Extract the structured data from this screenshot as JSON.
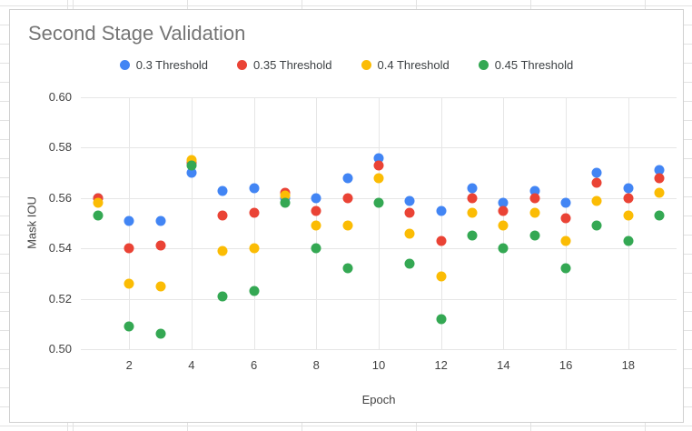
{
  "chart_data": {
    "type": "scatter",
    "title": "Second Stage Validation",
    "xlabel": "Epoch",
    "ylabel": "Mask IOU",
    "xlim": [
      0.45,
      19.55
    ],
    "ylim": [
      0.5,
      0.6
    ],
    "grid": true,
    "legend_position": "top-center",
    "x_ticks": [
      {
        "label": "2",
        "value": 2
      },
      {
        "label": "4",
        "value": 4
      },
      {
        "label": "6",
        "value": 6
      },
      {
        "label": "8",
        "value": 8
      },
      {
        "label": "10",
        "value": 10
      },
      {
        "label": "12",
        "value": 12
      },
      {
        "label": "14",
        "value": 14
      },
      {
        "label": "16",
        "value": 16
      },
      {
        "label": "18",
        "value": 18
      }
    ],
    "y_ticks": [
      {
        "label": "0.50",
        "value": 0.5
      },
      {
        "label": "0.52",
        "value": 0.52
      },
      {
        "label": "0.54",
        "value": 0.54
      },
      {
        "label": "0.56",
        "value": 0.56
      },
      {
        "label": "0.58",
        "value": 0.58
      },
      {
        "label": "0.60",
        "value": 0.6
      }
    ],
    "x": [
      1,
      2,
      3,
      4,
      5,
      6,
      7,
      8,
      9,
      10,
      11,
      12,
      13,
      14,
      15,
      16,
      17,
      18,
      19
    ],
    "series": [
      {
        "name": "0.3 Threshold",
        "color": "#4285F4",
        "values": [
          0.56,
          0.551,
          0.551,
          0.57,
          0.563,
          0.564,
          0.56,
          0.56,
          0.568,
          0.576,
          0.559,
          0.555,
          0.564,
          0.558,
          0.563,
          0.558,
          0.57,
          0.564,
          0.571
        ]
      },
      {
        "name": "0.35 Threshold",
        "color": "#EA4335",
        "values": [
          0.56,
          0.54,
          0.541,
          0.574,
          0.553,
          0.554,
          0.562,
          0.555,
          0.56,
          0.573,
          0.554,
          0.543,
          0.56,
          0.555,
          0.56,
          0.552,
          0.566,
          0.56,
          0.568
        ]
      },
      {
        "name": "0.4 Threshold",
        "color": "#FBBC04",
        "values": [
          0.558,
          0.526,
          0.525,
          0.575,
          0.539,
          0.54,
          0.561,
          0.549,
          0.549,
          0.568,
          0.546,
          0.529,
          0.554,
          0.549,
          0.554,
          0.543,
          0.559,
          0.553,
          0.562
        ]
      },
      {
        "name": "0.45 Threshold",
        "color": "#34A853",
        "values": [
          0.553,
          0.509,
          0.506,
          0.573,
          0.521,
          0.523,
          0.558,
          0.54,
          0.532,
          0.558,
          0.534,
          0.512,
          0.545,
          0.54,
          0.545,
          0.532,
          0.549,
          0.543,
          0.553
        ]
      }
    ]
  }
}
